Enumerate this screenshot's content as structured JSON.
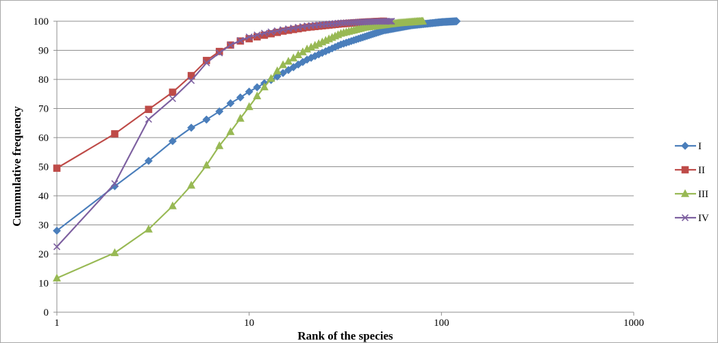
{
  "chart_data": {
    "type": "line",
    "xlabel": "Rank of the species",
    "ylabel": "Cummulative frequency",
    "xscale": "log",
    "xlim": [
      1,
      1000
    ],
    "ylim": [
      0,
      100
    ],
    "x_ticks": [
      1,
      10,
      100,
      1000
    ],
    "x_tick_labels": [
      "1",
      "10",
      "100",
      "1000"
    ],
    "y_ticks": [
      0,
      10,
      20,
      30,
      40,
      50,
      60,
      70,
      80,
      90,
      100
    ],
    "y_tick_labels": [
      "0",
      "10",
      "20",
      "30",
      "40",
      "50",
      "60",
      "70",
      "80",
      "90",
      "100"
    ],
    "grid": "horizontal",
    "legend": "right",
    "series": [
      {
        "name": "I",
        "color": "#4a7ebb",
        "marker": "diamond",
        "max_rank": 120,
        "anchors": [
          [
            1,
            28
          ],
          [
            2,
            43.3
          ],
          [
            3,
            52
          ],
          [
            4,
            58.8
          ],
          [
            5,
            63.4
          ],
          [
            6,
            66.2
          ],
          [
            7,
            69
          ],
          [
            8,
            71.8
          ],
          [
            9,
            73.8
          ],
          [
            10,
            75.8
          ],
          [
            11,
            77.3
          ],
          [
            12,
            78.7
          ],
          [
            13,
            79.8
          ],
          [
            14,
            81
          ],
          [
            15,
            82.2
          ],
          [
            20,
            86.8
          ],
          [
            30,
            92
          ],
          [
            50,
            96.8
          ],
          [
            70,
            98.6
          ],
          [
            100,
            99.7
          ],
          [
            120,
            100
          ]
        ]
      },
      {
        "name": "II",
        "color": "#be4b48",
        "marker": "square",
        "max_rank": 50,
        "anchors": [
          [
            1,
            49.5
          ],
          [
            2,
            61.3
          ],
          [
            3,
            69.7
          ],
          [
            4,
            75.6
          ],
          [
            5,
            81.3
          ],
          [
            6,
            86.5
          ],
          [
            7,
            89.6
          ],
          [
            8,
            91.8
          ],
          [
            9,
            93.2
          ],
          [
            10,
            94
          ],
          [
            12,
            95.2
          ],
          [
            15,
            96.6
          ],
          [
            20,
            97.9
          ],
          [
            30,
            99.1
          ],
          [
            40,
            99.7
          ],
          [
            50,
            100
          ]
        ]
      },
      {
        "name": "III",
        "color": "#98b954",
        "marker": "triangle",
        "max_rank": 80,
        "anchors": [
          [
            1,
            11.7
          ],
          [
            2,
            20.4
          ],
          [
            3,
            28.5
          ],
          [
            4,
            36.5
          ],
          [
            5,
            43.6
          ],
          [
            6,
            50.5
          ],
          [
            7,
            57.2
          ],
          [
            8,
            62
          ],
          [
            9,
            66.6
          ],
          [
            10,
            70.6
          ],
          [
            11,
            74.3
          ],
          [
            12,
            77.4
          ],
          [
            13,
            80.3
          ],
          [
            14,
            82.9
          ],
          [
            15,
            85
          ],
          [
            20,
            90.4
          ],
          [
            30,
            95.8
          ],
          [
            40,
            97.9
          ],
          [
            60,
            99.4
          ],
          [
            80,
            100
          ]
        ]
      },
      {
        "name": "IV",
        "color": "#7d60a0",
        "marker": "x",
        "max_rank": 55,
        "anchors": [
          [
            1,
            22.5
          ],
          [
            2,
            44.2
          ],
          [
            3,
            66.3
          ],
          [
            4,
            73.4
          ],
          [
            5,
            79.6
          ],
          [
            6,
            85.7
          ],
          [
            7,
            89.1
          ],
          [
            8,
            91.8
          ],
          [
            9,
            93.4
          ],
          [
            10,
            94.6
          ],
          [
            12,
            95.9
          ],
          [
            15,
            97.1
          ],
          [
            20,
            98.4
          ],
          [
            30,
            99.4
          ],
          [
            45,
            99.9
          ],
          [
            55,
            100
          ]
        ]
      }
    ]
  }
}
